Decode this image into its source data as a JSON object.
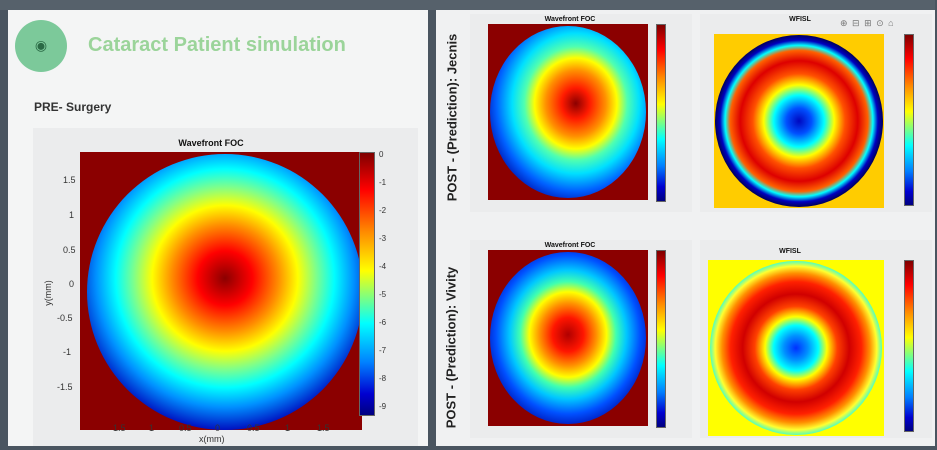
{
  "app": {
    "title": "Cataract Patient simulation",
    "logo_icon": "eye-icon",
    "logo_text": "",
    "accent": "#7cc99a"
  },
  "pre_surgery": {
    "section_label": "PRE- Surgery",
    "plot": {
      "title": "Wavefront FOC",
      "x_ticks": [
        "1.5",
        "1",
        "0.5",
        "0",
        "0.5",
        "1",
        "1.5"
      ],
      "y_ticks": [
        "1.5",
        "1",
        "0.5",
        "0",
        "-0.5",
        "-1",
        "-1.5"
      ],
      "xlabel": "x(mm)",
      "ylabel": "y(mm)",
      "colorbar_ticks": [
        "0",
        "-1",
        "-2",
        "-3",
        "-4",
        "-5",
        "-6",
        "-7",
        "-8",
        "-9"
      ]
    }
  },
  "post_top": {
    "side_label": "POST - (Prediction): Jecnis",
    "left_title": "Wavefront FOC",
    "right_title": "WFISL",
    "toolbar_icons": "⊕ ⊟ ⊞ ⊙ ⌂"
  },
  "post_bottom": {
    "side_label": "POST - (Prediction): Vivity",
    "left_title": "Wavefront FOC",
    "right_title": "WFISL"
  },
  "colors": {
    "background": "#4a5560",
    "panel": "#f3f4f5",
    "plot_bg": "#8b0000"
  }
}
